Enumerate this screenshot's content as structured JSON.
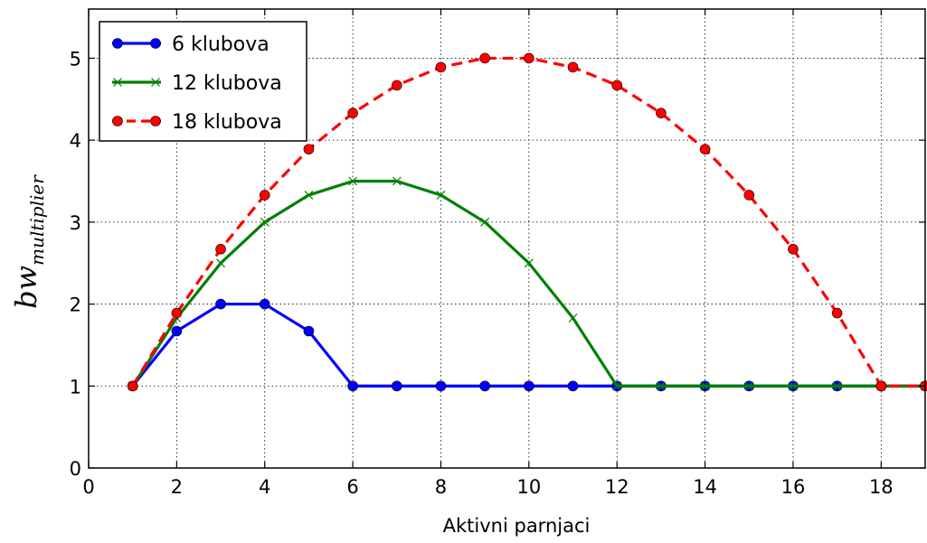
{
  "chart_data": {
    "type": "line",
    "xlabel": "Aktivni  parnjaci",
    "ylabel_main": "bw",
    "ylabel_sub": "multiplier",
    "xlim": [
      0,
      19
    ],
    "ylim": [
      0,
      5.6
    ],
    "xticks": [
      0,
      2,
      4,
      6,
      8,
      10,
      12,
      14,
      16,
      18
    ],
    "yticks": [
      0,
      1,
      2,
      3,
      4,
      5
    ],
    "grid": true,
    "legend_position": "top-left",
    "series": [
      {
        "name": "6 klubova",
        "color": "#0000ff",
        "line_style": "solid",
        "marker": "circle",
        "x": [
          1,
          2,
          3,
          4,
          5,
          6,
          7,
          8,
          9,
          10,
          11,
          12,
          13,
          14,
          15,
          16,
          17,
          18,
          19
        ],
        "y": [
          1,
          1.67,
          2,
          2,
          1.67,
          1,
          1,
          1,
          1,
          1,
          1,
          1,
          1,
          1,
          1,
          1,
          1,
          1,
          1
        ]
      },
      {
        "name": "12 klubova",
        "color": "#008000",
        "line_style": "solid",
        "marker": "x",
        "x": [
          1,
          2,
          3,
          4,
          5,
          6,
          7,
          8,
          9,
          10,
          11,
          12,
          13,
          14,
          15,
          16,
          17,
          18,
          19
        ],
        "y": [
          1,
          1.83,
          2.5,
          3,
          3.33,
          3.5,
          3.5,
          3.33,
          3,
          2.5,
          1.83,
          1,
          1,
          1,
          1,
          1,
          1,
          1,
          1
        ]
      },
      {
        "name": "18 klubova",
        "color": "#ff0000",
        "line_style": "dashed",
        "marker": "circle",
        "x": [
          1,
          2,
          3,
          4,
          5,
          6,
          7,
          8,
          9,
          10,
          11,
          12,
          13,
          14,
          15,
          16,
          17,
          18,
          19
        ],
        "y": [
          1,
          1.89,
          2.67,
          3.33,
          3.89,
          4.33,
          4.67,
          4.89,
          5,
          5,
          4.89,
          4.67,
          4.33,
          3.89,
          3.33,
          2.67,
          1.89,
          1,
          1
        ]
      }
    ]
  }
}
